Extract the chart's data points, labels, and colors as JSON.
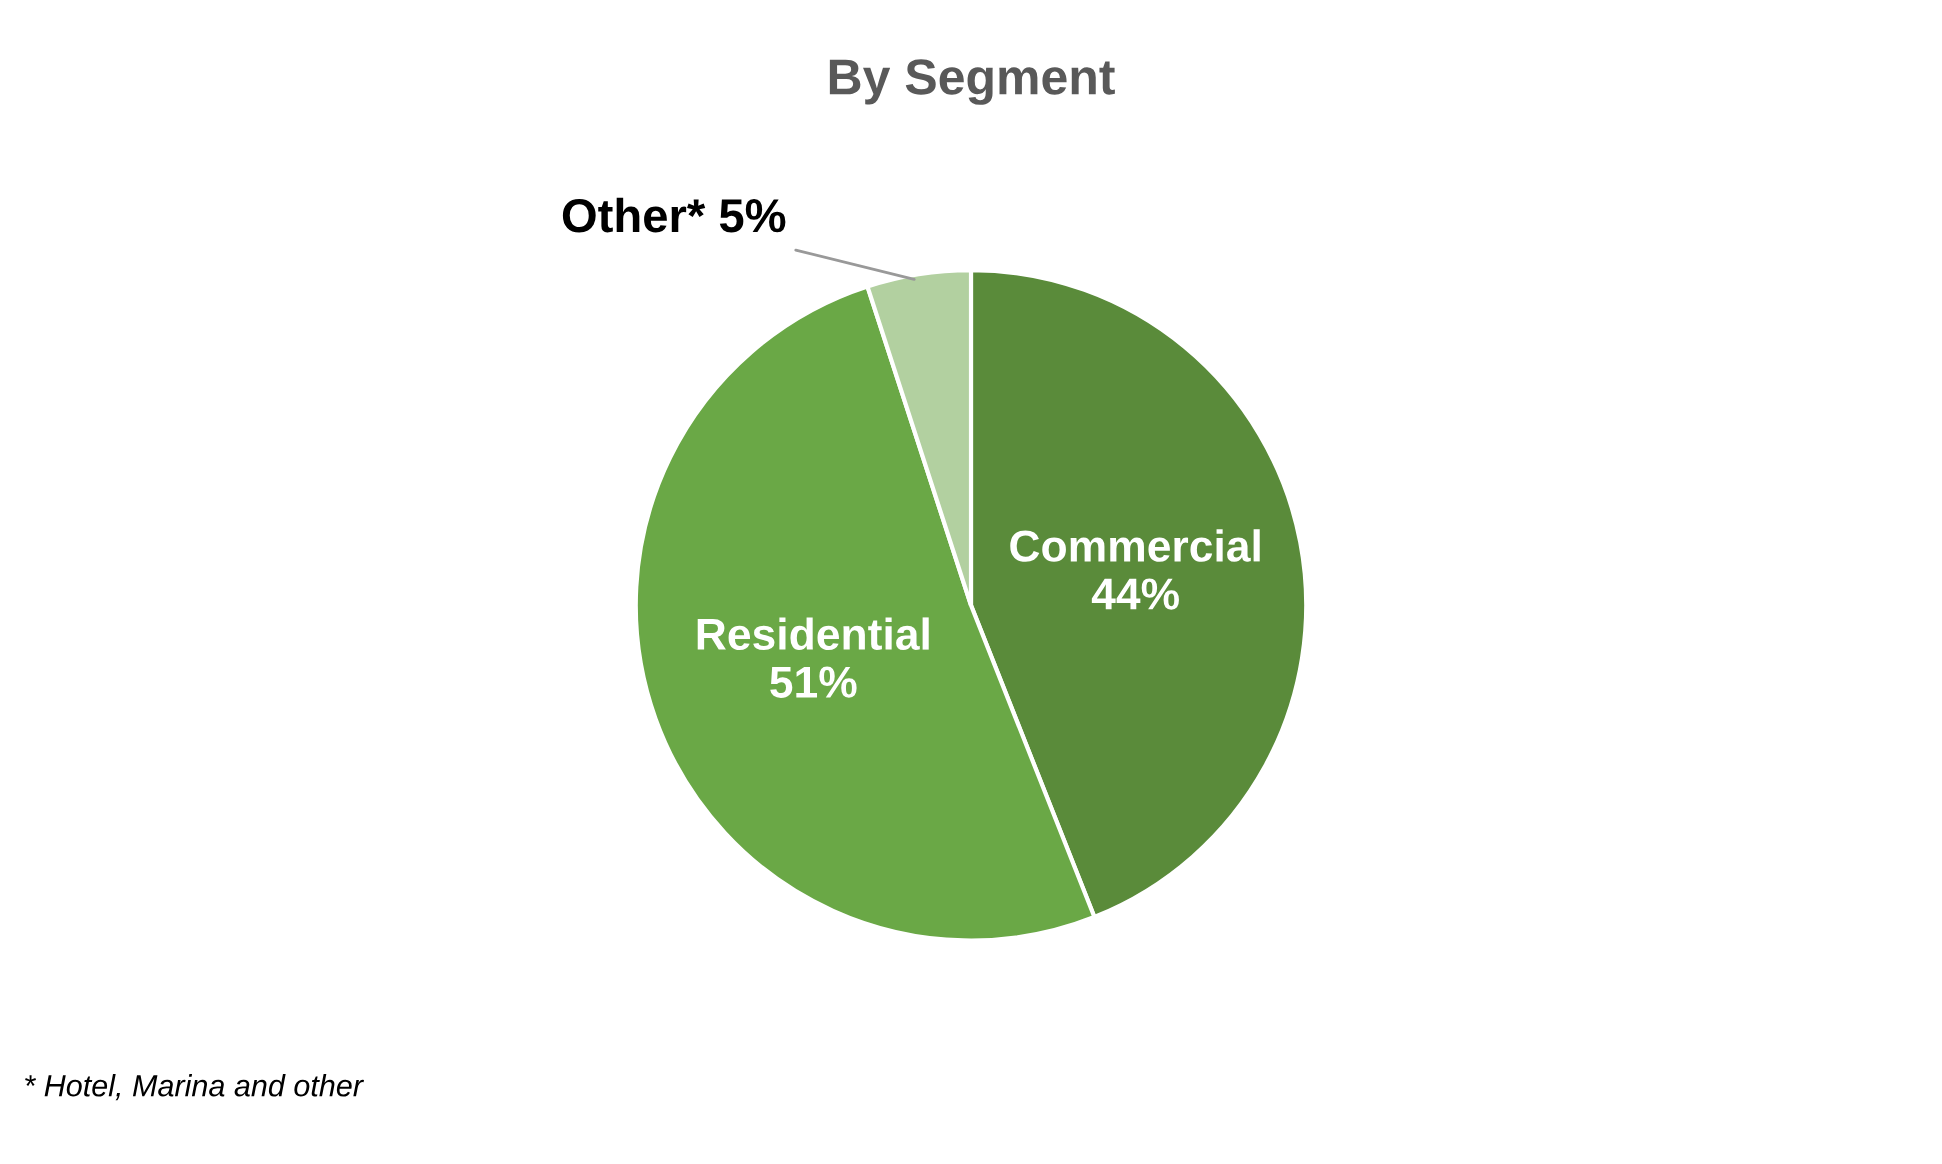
{
  "chart_data": {
    "type": "pie",
    "title": "By Segment",
    "categories": [
      "Commercial",
      "Residential",
      "Other*"
    ],
    "values": [
      44,
      51,
      5
    ],
    "colors": [
      "#5a8b3a",
      "#6aa846",
      "#b2d0a0"
    ],
    "value_labels": [
      "44%",
      "51%",
      "5%"
    ],
    "annotations": [
      "* Hotel, Marina and other"
    ]
  }
}
